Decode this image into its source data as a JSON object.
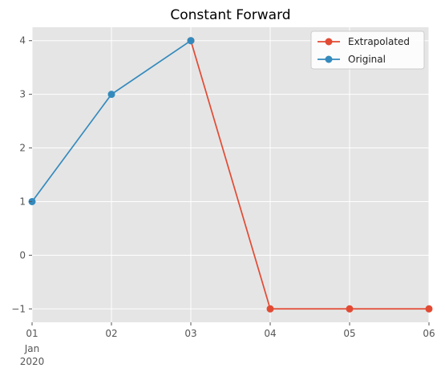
{
  "chart_data": {
    "type": "line",
    "title": "Constant Forward",
    "xlabel": "",
    "ylabel": "",
    "x": [
      "2020-01-01",
      "2020-01-02",
      "2020-01-03",
      "2020-01-04",
      "2020-01-05",
      "2020-01-06"
    ],
    "x_tick_labels": [
      "01",
      "02",
      "03",
      "04",
      "05",
      "06"
    ],
    "x_tick_sublabel": [
      "Jan",
      "2020"
    ],
    "y_ticks": [
      -1,
      0,
      1,
      2,
      3,
      4
    ],
    "y_tick_labels": [
      "−1",
      "0",
      "1",
      "2",
      "3",
      "4"
    ],
    "ylim": [
      -1.25,
      4.25
    ],
    "grid": true,
    "legend_position": "top-right",
    "series": [
      {
        "name": "Extrapolated",
        "color": "#E24A33",
        "x": [
          "2020-01-03",
          "2020-01-04",
          "2020-01-05",
          "2020-01-06"
        ],
        "values": [
          4,
          -1,
          -1,
          -1
        ]
      },
      {
        "name": "Original",
        "color": "#348ABD",
        "x": [
          "2020-01-01",
          "2020-01-02",
          "2020-01-03"
        ],
        "values": [
          1,
          3,
          4
        ]
      }
    ],
    "background": "#E5E5E5"
  }
}
